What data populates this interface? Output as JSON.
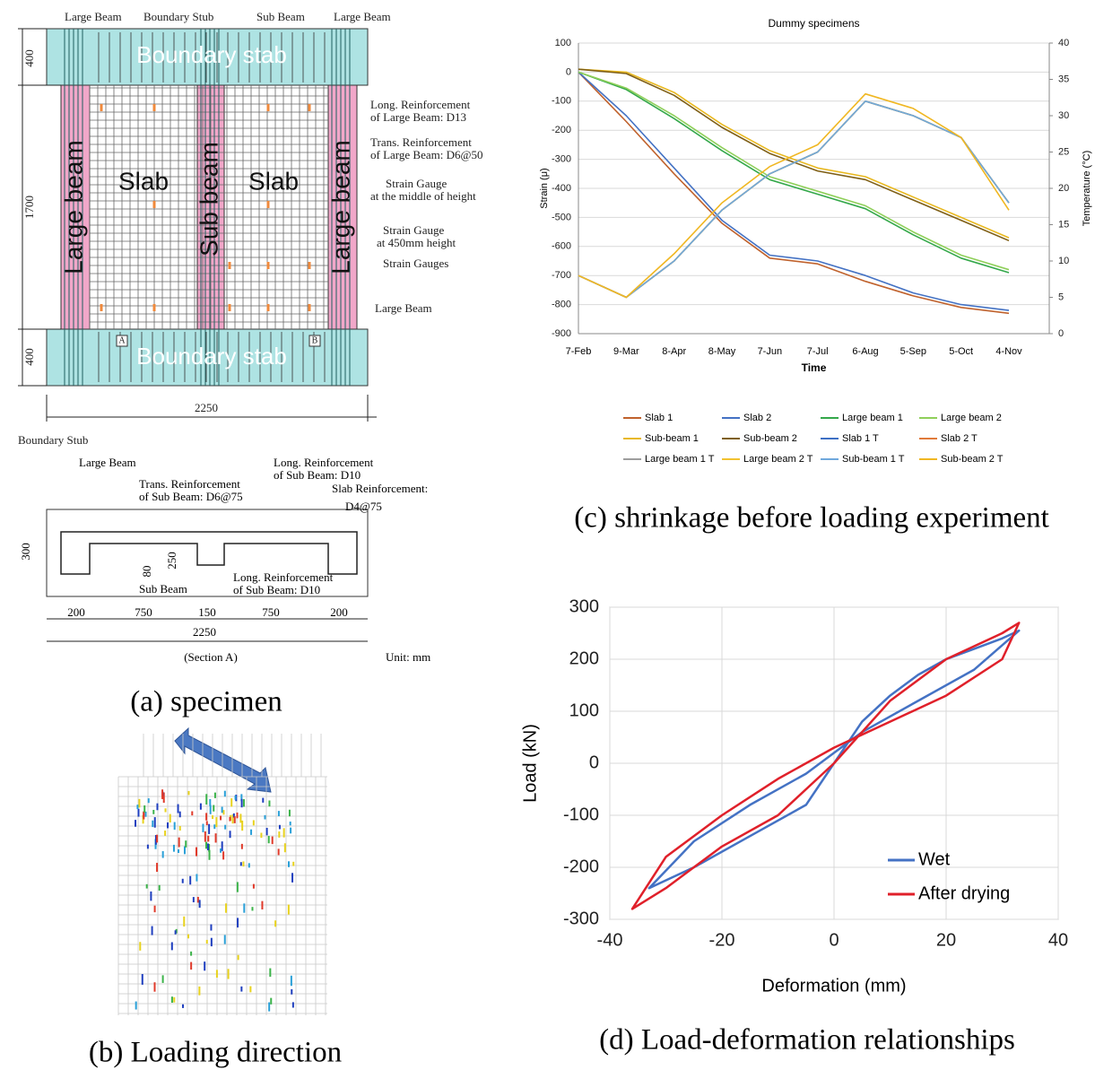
{
  "specimen": {
    "plan": [
      "Large Beam",
      "Boundary Stub",
      "Sub Beam",
      "Large Beam",
      "Boundary stab",
      "Boundary stab",
      "Large beam",
      "Sub beam",
      "Large beam",
      "Slab",
      "Slab",
      "400",
      "1700",
      "400",
      "2250",
      "Long. Reinforcement",
      "of Large Beam: D13",
      "Trans. Reinforcement",
      "of Large Beam: D6@50",
      "Strain Gauge",
      "at the middle of height",
      "Strain Gauge",
      "at 450mm height",
      "Strain Gauges",
      "Large Beam",
      "A",
      "B",
      "Boundary Stub"
    ],
    "section": [
      "Large Beam",
      "Long. Reinforcement",
      "of Sub Beam: D10",
      "Trans. Reinforcement",
      "of Sub Beam: D6@75",
      "Slab Reinforcement:",
      "D4@75",
      "300",
      "80",
      "250",
      "Sub Beam",
      "Long. Reinforcement",
      "of Sub Beam: D10",
      "200",
      "750",
      "150",
      "750",
      "200",
      "2250",
      "(Section A)",
      "Unit: mm"
    ]
  },
  "captions": [
    "(a) specimen",
    "(b) Loading direction",
    "(c) shrinkage before loading experiment",
    "(d) Load-deformation relationships"
  ],
  "chart_data": [
    {
      "type": "line",
      "title": "Dummy specimens",
      "x_label": "Time",
      "y_label": "Strain  (μ)",
      "y2_label": "Temperature (°C)",
      "categories": [
        "7-Feb",
        "9-Mar",
        "8-Apr",
        "8-May",
        "7-Jun",
        "7-Jul",
        "6-Aug",
        "5-Sep",
        "5-Oct",
        "4-Nov"
      ],
      "ylim": [
        -900,
        100
      ],
      "yticks": [
        -900,
        -800,
        -700,
        -600,
        -500,
        -400,
        -300,
        -200,
        -100,
        0,
        100
      ],
      "y2lim": [
        0,
        40
      ],
      "y2ticks": [
        0,
        5,
        10,
        15,
        20,
        25,
        30,
        35,
        40
      ],
      "grid": true,
      "series": [
        {
          "name": "Slab 1",
          "color": "#c0622d",
          "values": [
            0,
            -170,
            -350,
            -520,
            -640,
            -660,
            -720,
            -770,
            -810,
            -830
          ]
        },
        {
          "name": "Slab 2",
          "color": "#4472c4",
          "values": [
            0,
            -150,
            -330,
            -510,
            -630,
            -650,
            -700,
            -760,
            -800,
            -820
          ]
        },
        {
          "name": "Large beam 1",
          "color": "#34a84a",
          "values": [
            0,
            -60,
            -160,
            -270,
            -370,
            -420,
            -470,
            -560,
            -640,
            -690
          ]
        },
        {
          "name": "Large beam 2",
          "color": "#8fcf5a",
          "values": [
            0,
            -55,
            -150,
            -260,
            -360,
            -410,
            -460,
            -550,
            -630,
            -680
          ]
        },
        {
          "name": "Sub-beam 1",
          "color": "#e8b820",
          "values": [
            10,
            0,
            -70,
            -180,
            -270,
            -330,
            -360,
            -430,
            -500,
            -570
          ]
        },
        {
          "name": "Sub-beam 2",
          "color": "#7f5f16",
          "values": [
            10,
            -5,
            -80,
            -190,
            -280,
            -340,
            -370,
            -440,
            -510,
            -580
          ]
        },
        {
          "name": "Slab 1 T",
          "color": "#3d6fc4",
          "axis": "y2",
          "values": [
            8,
            5,
            10,
            17,
            22,
            25,
            32,
            30,
            27,
            18
          ]
        },
        {
          "name": "Slab 2 T",
          "color": "#e07a3a",
          "axis": "y2",
          "values": [
            8,
            5,
            10,
            17,
            22,
            25,
            32,
            30,
            27,
            18
          ]
        },
        {
          "name": "Large beam 1 T",
          "color": "#9e9e9e",
          "axis": "y2",
          "values": [
            8,
            5,
            10,
            17,
            22,
            25,
            32,
            30,
            27,
            18
          ]
        },
        {
          "name": "Large beam 2 T",
          "color": "#f2c230",
          "axis": "y2",
          "values": [
            8,
            5,
            10,
            17,
            22,
            25,
            32,
            30,
            27,
            18
          ]
        },
        {
          "name": "Sub-beam 1 T",
          "color": "#6fa8dc",
          "axis": "y2",
          "values": [
            8,
            5,
            10,
            17,
            22,
            25,
            32,
            30,
            27,
            18
          ]
        },
        {
          "name": "Sub-beam 2 T",
          "color": "#f0b722",
          "axis": "y2",
          "values": [
            8,
            5,
            11,
            18,
            23,
            26,
            33,
            31,
            27,
            17
          ]
        }
      ]
    },
    {
      "type": "line",
      "x_label": "Deformation (mm)",
      "y_label": "Load (kN)",
      "xlim": [
        -40,
        40
      ],
      "xticks": [
        -40,
        -20,
        0,
        20,
        40
      ],
      "ylim": [
        -300,
        300
      ],
      "yticks": [
        -300,
        -200,
        -100,
        0,
        100,
        200,
        300
      ],
      "grid": true,
      "legend": "lower right",
      "series": [
        {
          "name": "Wet",
          "color": "#4472c4",
          "x": [
            0,
            5,
            10,
            15,
            20,
            25,
            30,
            33,
            25,
            15,
            5,
            0,
            -5,
            -15,
            -25,
            -33,
            -25,
            -15,
            -5,
            0
          ],
          "values": [
            0,
            80,
            130,
            170,
            200,
            220,
            240,
            255,
            180,
            120,
            60,
            20,
            -20,
            -80,
            -150,
            -240,
            -200,
            -140,
            -80,
            0
          ]
        },
        {
          "name": "After drying",
          "color": "#e0202a",
          "x": [
            0,
            10,
            20,
            30,
            33,
            30,
            20,
            10,
            0,
            -10,
            -20,
            -30,
            -36,
            -30,
            -20,
            -10,
            0
          ],
          "values": [
            0,
            120,
            200,
            250,
            270,
            200,
            130,
            80,
            30,
            -30,
            -100,
            -180,
            -280,
            -240,
            -160,
            -100,
            0
          ]
        }
      ]
    }
  ]
}
